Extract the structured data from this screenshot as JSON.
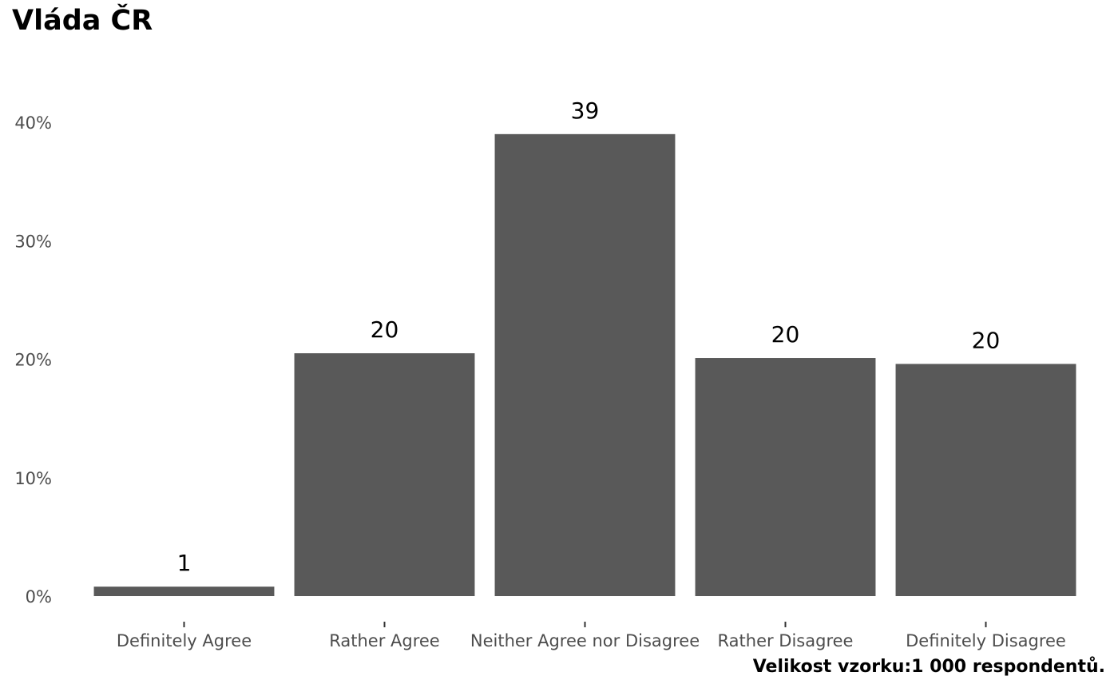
{
  "chart_data": {
    "type": "bar",
    "title": "Vláda ČR",
    "caption": "Velikost vzorku:1 000 respondentů.",
    "xlabel": "",
    "ylabel": "",
    "categories": [
      "Definitely Agree",
      "Rather Agree",
      "Neither Agree nor Disagree",
      "Rather Disagree",
      "Definitely Disagree"
    ],
    "values": [
      0.8,
      20.5,
      39.0,
      20.1,
      19.6
    ],
    "data_labels": [
      "1",
      "20",
      "39",
      "20",
      "20"
    ],
    "y_ticks": [
      0,
      10,
      20,
      30,
      40
    ],
    "y_tick_labels": [
      "0%",
      "10%",
      "20%",
      "30%",
      "40%"
    ],
    "ylim": [
      0,
      40
    ],
    "grid": false,
    "bar_color": "#595959"
  }
}
